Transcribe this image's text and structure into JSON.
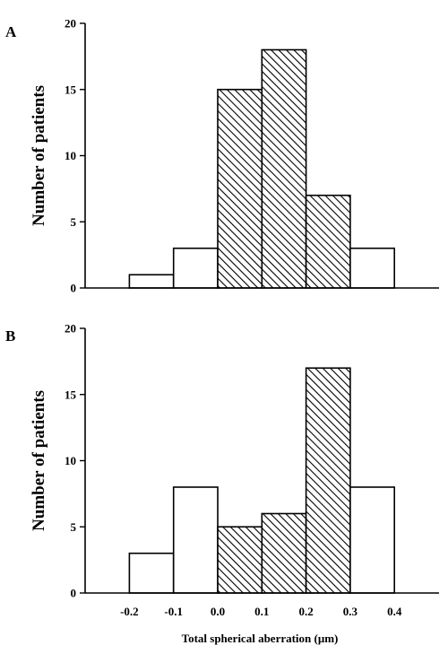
{
  "chart_data": [
    {
      "type": "bar",
      "panel_label": "A",
      "bins": [
        {
          "x0": -0.2,
          "x1": -0.1,
          "value": 1,
          "hatched": false
        },
        {
          "x0": -0.1,
          "x1": 0.0,
          "value": 3,
          "hatched": false
        },
        {
          "x0": 0.0,
          "x1": 0.1,
          "value": 15,
          "hatched": true
        },
        {
          "x0": 0.1,
          "x1": 0.2,
          "value": 18,
          "hatched": true
        },
        {
          "x0": 0.2,
          "x1": 0.3,
          "value": 7,
          "hatched": true
        },
        {
          "x0": 0.3,
          "x1": 0.4,
          "value": 3,
          "hatched": false
        }
      ],
      "ylabel": "Number of patients",
      "xlabel": "",
      "ylim": [
        0,
        20
      ],
      "yticks": [
        "0",
        "5",
        "10",
        "15",
        "20"
      ],
      "xlim": [
        -0.3,
        0.5
      ],
      "xticks": [],
      "grid": false
    },
    {
      "type": "bar",
      "panel_label": "B",
      "bins": [
        {
          "x0": -0.2,
          "x1": -0.1,
          "value": 3,
          "hatched": false
        },
        {
          "x0": -0.1,
          "x1": 0.0,
          "value": 8,
          "hatched": false
        },
        {
          "x0": 0.0,
          "x1": 0.1,
          "value": 5,
          "hatched": true
        },
        {
          "x0": 0.1,
          "x1": 0.2,
          "value": 6,
          "hatched": true
        },
        {
          "x0": 0.2,
          "x1": 0.3,
          "value": 17,
          "hatched": true
        },
        {
          "x0": 0.3,
          "x1": 0.4,
          "value": 8,
          "hatched": false
        }
      ],
      "ylabel": "Number of patients",
      "xlabel": "Total spherical aberration (μm)",
      "ylim": [
        0,
        20
      ],
      "yticks": [
        "0",
        "5",
        "10",
        "15",
        "20"
      ],
      "xlim": [
        -0.3,
        0.5
      ],
      "xticks": [
        "-0.2",
        "-0.1",
        "0.0",
        "0.1",
        "0.2",
        "0.3",
        "0.4"
      ],
      "grid": false
    }
  ]
}
